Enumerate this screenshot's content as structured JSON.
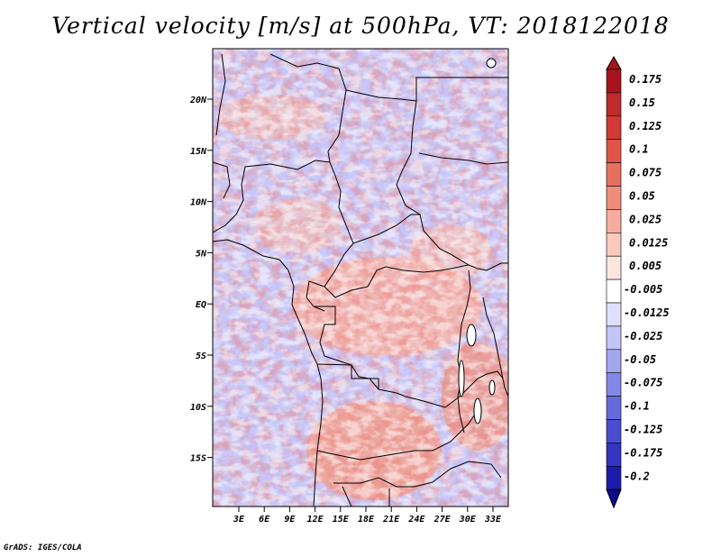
{
  "title": "Vertical velocity [m/s] at 500hPa, VT: 2018122018",
  "footer": "GrADS: IGES/COLA",
  "map": {
    "lat_labels": [
      "20N",
      "15N",
      "10N",
      "5N",
      "EQ",
      "5S",
      "10S",
      "15S"
    ],
    "lon_labels": [
      "3E",
      "6E",
      "9E",
      "12E",
      "15E",
      "18E",
      "21E",
      "24E",
      "27E",
      "30E",
      "33E"
    ]
  },
  "colorbar": {
    "labels": [
      "0.175",
      "0.15",
      "0.125",
      "0.1",
      "0.075",
      "0.05",
      "0.025",
      "0.0125",
      "0.005",
      "-0.005",
      "-0.0125",
      "-0.025",
      "-0.05",
      "-0.075",
      "-0.1",
      "-0.125",
      "-0.175",
      "-0.2"
    ],
    "colors": [
      "#a8141d",
      "#bf2a2d",
      "#d43b38",
      "#e05449",
      "#e8705f",
      "#ef8e7c",
      "#f4ad9f",
      "#f8cabf",
      "#fce5df",
      "#ffffff",
      "#dfe0fc",
      "#c3c5f6",
      "#a3a6ef",
      "#8587e6",
      "#676adc",
      "#4b4dd0",
      "#3334c0",
      "#1c1ca8",
      "#0b0b8c"
    ]
  }
}
